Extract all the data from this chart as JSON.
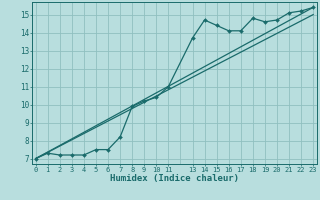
{
  "xlabel": "Humidex (Indice chaleur)",
  "bg_color": "#b8dede",
  "grid_color": "#90c0c0",
  "line_color": "#1a6b6b",
  "xlim": [
    -0.3,
    23.3
  ],
  "ylim": [
    6.7,
    15.7
  ],
  "xticks": [
    0,
    1,
    2,
    3,
    4,
    5,
    6,
    7,
    8,
    9,
    10,
    11,
    13,
    14,
    15,
    16,
    17,
    18,
    19,
    20,
    21,
    22,
    23
  ],
  "yticks": [
    7,
    8,
    9,
    10,
    11,
    12,
    13,
    14,
    15
  ],
  "grid_x": [
    0,
    1,
    2,
    3,
    4,
    5,
    6,
    7,
    8,
    9,
    10,
    11,
    12,
    13,
    14,
    15,
    16,
    17,
    18,
    19,
    20,
    21,
    22,
    23
  ],
  "series1_x": [
    0,
    1,
    2,
    3,
    4,
    5,
    6,
    7,
    8,
    9,
    10,
    11,
    13,
    14,
    15,
    16,
    17,
    18,
    19,
    20,
    21,
    22,
    23
  ],
  "series1_y": [
    7.0,
    7.3,
    7.2,
    7.2,
    7.2,
    7.5,
    7.5,
    8.2,
    9.9,
    10.2,
    10.4,
    11.0,
    13.7,
    14.7,
    14.4,
    14.1,
    14.1,
    14.8,
    14.6,
    14.7,
    15.1,
    15.2,
    15.4
  ],
  "line1_x": [
    0,
    23
  ],
  "line1_y": [
    7.0,
    15.4
  ],
  "line2_x": [
    0,
    23
  ],
  "line2_y": [
    7.0,
    15.0
  ]
}
